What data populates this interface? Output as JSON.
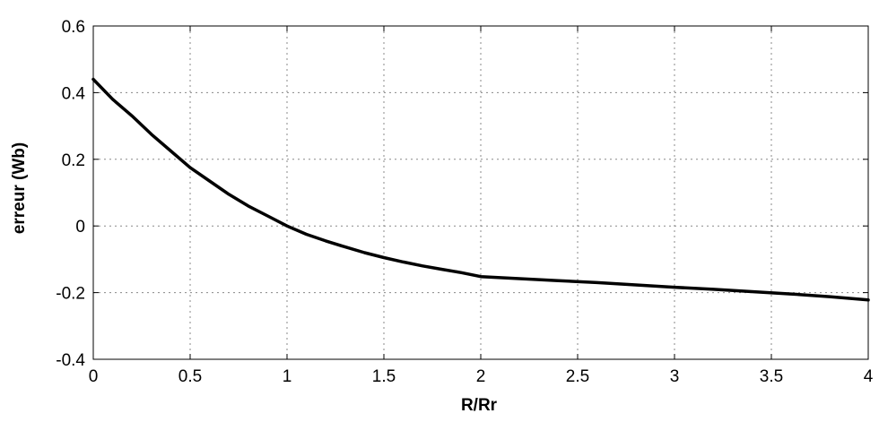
{
  "chart_data": {
    "type": "line",
    "title": "",
    "xlabel": "R/Rr",
    "ylabel": "erreur (Wb)",
    "xlim": [
      0,
      4
    ],
    "ylim": [
      -0.4,
      0.6
    ],
    "x_ticks": [
      "0",
      "0.5",
      "1",
      "1.5",
      "2",
      "2.5",
      "3",
      "3.5",
      "4"
    ],
    "y_ticks": [
      "0.6",
      "0.4",
      "0.2",
      "0",
      "-0.2",
      "-0.4"
    ],
    "grid": true,
    "legend": "none",
    "series": [
      {
        "color": "#000000",
        "x": [
          0,
          0.1,
          0.2,
          0.3,
          0.4,
          0.5,
          0.6,
          0.7,
          0.8,
          0.9,
          1.0,
          1.1,
          1.2,
          1.3,
          1.4,
          1.5,
          1.6,
          1.7,
          1.8,
          1.9,
          2.0,
          2.2,
          2.4,
          2.6,
          2.8,
          3.0,
          3.2,
          3.4,
          3.6,
          3.8,
          4.0
        ],
        "y": [
          0.44,
          0.38,
          0.33,
          0.275,
          0.225,
          0.175,
          0.135,
          0.095,
          0.06,
          0.03,
          0.0,
          -0.025,
          -0.045,
          -0.063,
          -0.08,
          -0.095,
          -0.108,
          -0.12,
          -0.13,
          -0.14,
          -0.152,
          -0.158,
          -0.164,
          -0.17,
          -0.177,
          -0.184,
          -0.19,
          -0.197,
          -0.204,
          -0.212,
          -0.222
        ]
      }
    ]
  }
}
